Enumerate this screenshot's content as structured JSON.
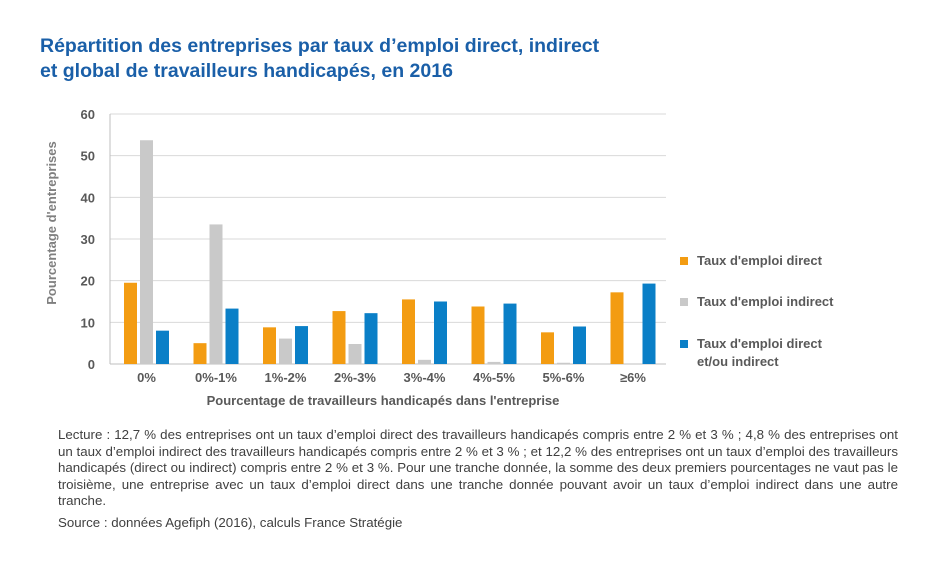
{
  "title_line1": "Répartition des entreprises par taux d’emploi direct, indirect",
  "title_line2": "et global de travailleurs handicapés, en 2016",
  "chart_data": {
    "type": "bar",
    "title": "Répartition des entreprises par taux d’emploi direct, indirect et global de travailleurs handicapés, en 2016",
    "xlabel": "Pourcentage de travailleurs handicapés dans l'entreprise",
    "ylabel": "Pourcentage d'entreprises",
    "ylim": [
      0,
      60
    ],
    "yticks": [
      0,
      10,
      20,
      30,
      40,
      50,
      60
    ],
    "grid": true,
    "legend_position": "right",
    "categories": [
      "0%",
      "0%-1%",
      "1%-2%",
      "2%-3%",
      "3%-4%",
      "4%-5%",
      "5%-6%",
      "≥6%"
    ],
    "series": [
      {
        "name": "Taux d'emploi direct",
        "color": "#f39c12",
        "values": [
          19.5,
          5.0,
          8.8,
          12.7,
          15.5,
          13.8,
          7.6,
          17.2
        ]
      },
      {
        "name": "Taux d'emploi indirect",
        "color": "#c9c9c9",
        "values": [
          53.7,
          33.5,
          6.1,
          4.8,
          1.0,
          0.5,
          0.3,
          0
        ]
      },
      {
        "name": "Taux d'emploi direct et/ou indirect",
        "color": "#0a7fc7",
        "values": [
          8.0,
          13.3,
          9.1,
          12.2,
          15.0,
          14.5,
          9.0,
          19.3
        ]
      }
    ]
  },
  "legend": [
    {
      "lines": [
        "Taux d'emploi direct"
      ],
      "color": "#f39c12"
    },
    {
      "lines": [
        "Taux d'emploi indirect"
      ],
      "color": "#c9c9c9"
    },
    {
      "lines": [
        "Taux d'emploi direct",
        "et/ou indirect"
      ],
      "color": "#0a7fc7"
    }
  ],
  "note": "Lecture : 12,7 % des entreprises ont un taux d’emploi direct des travailleurs handicapés compris entre 2 % et 3 % ; 4,8 % des entreprises ont un taux d’emploi indirect des travailleurs handicapés compris entre 2 % et 3 % ; et 12,2 % des entreprises ont un taux d’emploi des travailleurs handicapés (direct ou indirect) compris entre 2 % et 3 %. Pour une tranche donnée, la somme des deux premiers pourcentages ne vaut pas le troisième, une entreprise avec un taux d’emploi direct dans une tranche donnée pouvant avoir un taux d’emploi indirect dans une autre tranche.",
  "source": "Source : données Agefiph (2016), calculs France Stratégie"
}
